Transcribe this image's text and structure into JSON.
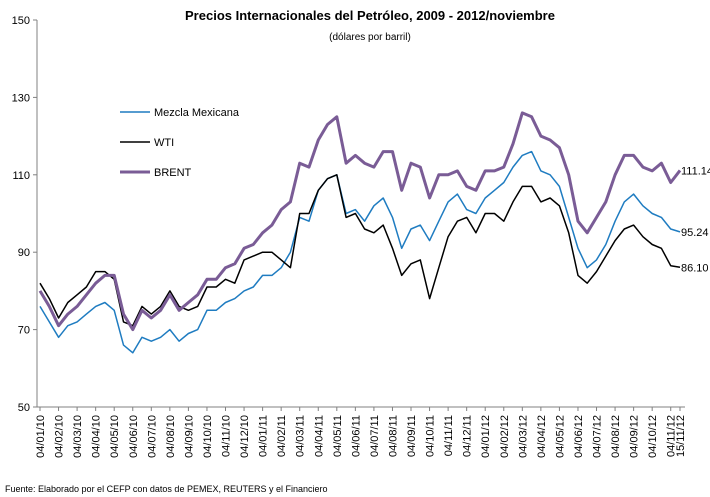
{
  "chart_data": {
    "type": "line",
    "title": "Precios Internacionales del Petróleo, 2009 - 2012/noviembre",
    "subtitle": "(dólares por barril)",
    "source": "Fuente: Elaborado por el CEFP con datos de PEMEX, REUTERS y el Financiero",
    "categories": [
      "04/01/10",
      null,
      "04/02/10",
      null,
      "04/03/10",
      null,
      "04/04/10",
      null,
      "04/05/10",
      null,
      "04/06/10",
      null,
      "04/07/10",
      null,
      "04/08/10",
      null,
      "04/09/10",
      null,
      "04/10/10",
      null,
      "04/11/10",
      null,
      "04/12/10",
      null,
      "04/01/11",
      null,
      "04/02/11",
      null,
      "04/03/11",
      null,
      "04/04/11",
      null,
      "04/05/11",
      null,
      "04/06/11",
      null,
      "04/07/11",
      null,
      "04/08/11",
      null,
      "04/09/11",
      null,
      "04/10/11",
      null,
      "04/11/11",
      null,
      "04/12/11",
      null,
      "04/01/12",
      null,
      "04/02/12",
      null,
      "04/03/12",
      null,
      "04/04/12",
      null,
      "04/05/12",
      null,
      "04/06/12",
      null,
      "04/07/12",
      null,
      "04/08/12",
      null,
      "04/09/12",
      null,
      "04/10/12",
      null,
      "04/11/12",
      "15/11/12"
    ],
    "series": [
      {
        "name": "Mezcla Mexicana",
        "color": "#1f7cc1",
        "values": [
          76,
          72,
          68,
          71,
          72,
          74,
          76,
          77,
          75,
          66,
          64,
          68,
          67,
          68,
          70,
          67,
          69,
          70,
          75,
          75,
          77,
          78,
          80,
          81,
          84,
          84,
          86,
          90,
          99,
          98,
          106,
          109,
          110,
          100,
          101,
          98,
          102,
          104,
          99,
          91,
          96,
          97,
          93,
          98,
          103,
          105,
          101,
          100,
          104,
          106,
          108,
          112,
          115,
          116,
          111,
          110,
          107,
          99,
          91,
          86,
          88,
          92,
          98,
          103,
          105,
          102,
          100,
          99,
          96,
          95.24
        ],
        "value_labels": [
          null,
          null,
          null,
          null,
          null,
          null,
          null,
          null,
          null,
          null,
          null,
          null,
          null,
          null,
          null,
          null,
          null,
          null,
          null,
          null,
          null,
          null,
          null,
          null,
          null,
          null,
          null,
          null,
          null,
          null,
          null,
          null,
          null,
          null,
          null,
          null,
          null,
          null,
          null,
          null,
          null,
          null,
          null,
          null,
          null,
          null,
          null,
          null,
          null,
          null,
          null,
          null,
          null,
          null,
          null,
          null,
          null,
          null,
          null,
          null,
          null,
          null,
          null,
          null,
          null,
          null,
          null,
          null,
          null,
          "95.24"
        ]
      },
      {
        "name": "WTI",
        "color": "#000000",
        "values": [
          82,
          78,
          73,
          77,
          79,
          81,
          85,
          85,
          83,
          72,
          71,
          76,
          74,
          76,
          80,
          76,
          75,
          76,
          81,
          81,
          83,
          82,
          88,
          89,
          90,
          90,
          88,
          86,
          100,
          100,
          106,
          109,
          110,
          99,
          100,
          96,
          95,
          97,
          91,
          84,
          87,
          88,
          78,
          86,
          94,
          98,
          99,
          95,
          100,
          100,
          98,
          103,
          107,
          107,
          103,
          104,
          102,
          95,
          84,
          82,
          85,
          89,
          93,
          96,
          97,
          94,
          92,
          91,
          86.5,
          86.1
        ],
        "value_labels": [
          null,
          null,
          null,
          null,
          null,
          null,
          null,
          null,
          null,
          null,
          null,
          null,
          null,
          null,
          null,
          null,
          null,
          null,
          null,
          null,
          null,
          null,
          null,
          null,
          null,
          null,
          null,
          null,
          null,
          null,
          null,
          null,
          null,
          null,
          null,
          null,
          null,
          null,
          null,
          null,
          null,
          null,
          null,
          null,
          null,
          null,
          null,
          null,
          null,
          null,
          null,
          null,
          null,
          null,
          null,
          null,
          null,
          null,
          null,
          null,
          null,
          null,
          null,
          null,
          null,
          null,
          null,
          null,
          null,
          "86.10"
        ]
      },
      {
        "name": "BRENT",
        "color": "#7a5c96",
        "values": [
          80,
          76,
          71,
          74,
          76,
          79,
          82,
          84,
          84,
          74,
          70,
          75,
          73,
          75,
          79,
          75,
          77,
          79,
          83,
          83,
          86,
          87,
          91,
          92,
          95,
          97,
          101,
          103,
          113,
          112,
          119,
          123,
          125,
          113,
          115,
          113,
          112,
          116,
          116,
          106,
          113,
          112,
          104,
          110,
          110,
          111,
          107,
          106,
          111,
          111,
          112,
          118,
          126,
          125,
          120,
          119,
          117,
          110,
          98,
          95,
          99,
          103,
          110,
          115,
          115,
          112,
          111,
          113,
          108,
          111.14
        ],
        "value_labels": [
          null,
          null,
          null,
          null,
          null,
          null,
          null,
          null,
          null,
          null,
          null,
          null,
          null,
          null,
          null,
          null,
          null,
          null,
          null,
          null,
          null,
          null,
          null,
          null,
          null,
          null,
          null,
          null,
          null,
          null,
          null,
          null,
          null,
          null,
          null,
          null,
          null,
          null,
          null,
          null,
          null,
          null,
          null,
          null,
          null,
          null,
          null,
          null,
          null,
          null,
          null,
          null,
          null,
          null,
          null,
          null,
          null,
          null,
          null,
          null,
          null,
          null,
          null,
          null,
          null,
          null,
          null,
          null,
          null,
          "111.14"
        ]
      }
    ],
    "ylim": [
      50,
      150
    ],
    "yticks": [
      50,
      70,
      90,
      110,
      130,
      150
    ],
    "grid": false,
    "legend": "top-left"
  }
}
